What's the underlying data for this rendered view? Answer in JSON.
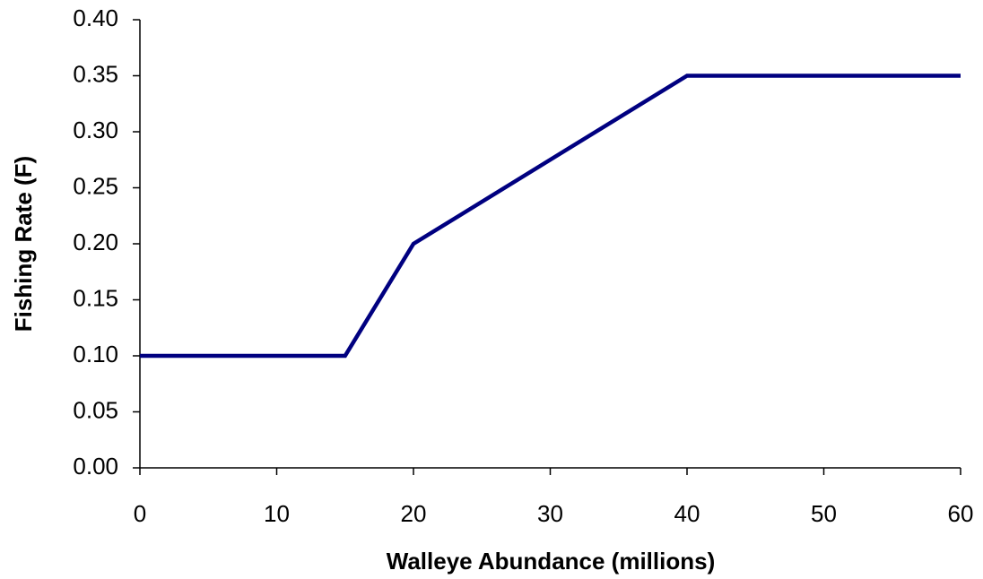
{
  "chart_data": {
    "type": "line",
    "xlabel": "Walleye Abundance (millions)",
    "ylabel": "Fishing Rate (F)",
    "x": [
      0,
      15,
      20,
      40,
      60
    ],
    "series": [
      {
        "color": "#000080",
        "values": [
          0.1,
          0.1,
          0.2,
          0.35,
          0.35
        ]
      }
    ],
    "xlim": [
      0,
      60
    ],
    "xticks": [
      0,
      10,
      20,
      30,
      40,
      50,
      60
    ],
    "ylim": [
      0,
      0.4
    ],
    "yticks": [
      {
        "value": 0,
        "label": "0.00"
      },
      {
        "value": 0.05,
        "label": "0.05"
      },
      {
        "value": 0.1,
        "label": "0.10"
      },
      {
        "value": 0.15,
        "label": "0.15"
      },
      {
        "value": 0.2,
        "label": "0.20"
      },
      {
        "value": 0.25,
        "label": "0.25"
      },
      {
        "value": 0.3,
        "label": "0.30"
      },
      {
        "value": 0.35,
        "label": "0.35"
      },
      {
        "value": 0.4,
        "label": "0.40"
      }
    ],
    "grid": false
  }
}
